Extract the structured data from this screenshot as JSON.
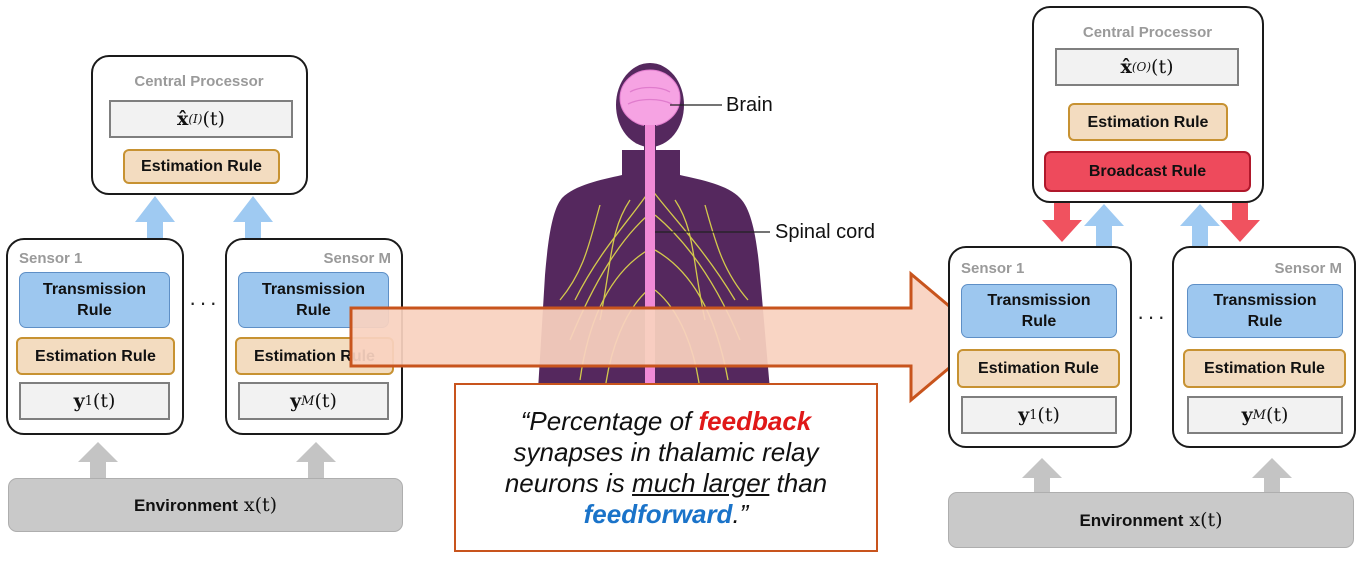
{
  "left_system": {
    "processor": {
      "title": "Central Processor",
      "estimate": "x̂(I)(t)",
      "estimate_main": "x̂",
      "estimate_sup": "(I)",
      "estimate_tail": "(t)",
      "rule": "Estimation Rule"
    },
    "sensor_first": {
      "title": "Sensor 1",
      "transmission": "Transmission Rule",
      "estimation": "Estimation Rule",
      "measurement_main": "y",
      "measurement_sub": "1",
      "measurement_tail": "(t)"
    },
    "sensor_last": {
      "title": "Sensor M",
      "transmission": "Transmission Rule",
      "estimation": "Estimation Rule",
      "measurement_main": "y",
      "measurement_sub": "M",
      "measurement_tail": "(t)"
    },
    "ellipsis": "···",
    "environment": {
      "label": "Environment",
      "math": "x(t)"
    }
  },
  "right_system": {
    "processor": {
      "title": "Central Processor",
      "estimate_main": "x̂",
      "estimate_sup": "(O)",
      "estimate_tail": "(t)",
      "rule": "Estimation Rule",
      "broadcast": "Broadcast Rule"
    },
    "sensor_first": {
      "title": "Sensor 1",
      "transmission": "Transmission Rule",
      "estimation": "Estimation Rule",
      "measurement_main": "y",
      "measurement_sub": "1",
      "measurement_tail": "(t)"
    },
    "sensor_last": {
      "title": "Sensor M",
      "transmission": "Transmission Rule",
      "estimation": "Estimation Rule",
      "measurement_main": "y",
      "measurement_sub": "M",
      "measurement_tail": "(t)"
    },
    "ellipsis": "···",
    "environment": {
      "label": "Environment",
      "math": "x(t)"
    }
  },
  "anatomy": {
    "brain_label": "Brain",
    "spinal_label": "Spinal cord"
  },
  "quote": {
    "open": "“Percentage of ",
    "feedback": "feedback",
    "line2": "synapses in thalamic relay",
    "line3a": "neurons is ",
    "line3_underline": "much larger",
    "line3b": " than",
    "feedforward": "feedforward",
    "close": ".”"
  },
  "colors": {
    "transmission": "#9dc7ef",
    "estimation": "#f3dcc0",
    "broadcast": "#ee4a5c",
    "upward_arrow": "#9fcaf2",
    "downward_arrow": "#f0525f",
    "environment_arrow": "#c4c4c4",
    "big_arrow_fill": "#f9d2bf",
    "big_arrow_border": "#c8541d",
    "feedback_text": "#e01818",
    "feedforward_text": "#1a73c9"
  }
}
